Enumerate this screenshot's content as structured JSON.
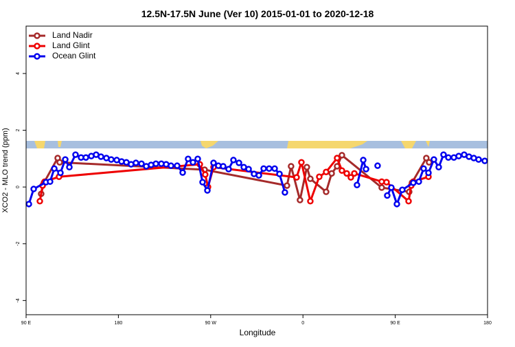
{
  "chart_data": {
    "type": "line",
    "title": "12.5N-17.5N June (Ver 10)   2015-01-01 to 2020-12-18",
    "x_label": "Longitude",
    "y_label": "XCO2 - MLO trend (ppm)",
    "xlim": [
      90,
      540
    ],
    "ylim": [
      -4.5,
      5.67
    ],
    "xticks": [
      {
        "value": 90,
        "label": "90 E"
      },
      180,
      {
        "value": 270,
        "label": "90 W"
      },
      {
        "value": 360,
        "label": "0"
      },
      {
        "value": 450,
        "label": "90 E"
      },
      {
        "value": 540,
        "label": "180"
      }
    ],
    "yticks": [
      -4,
      -2,
      0,
      2,
      4
    ],
    "legend": "top-left",
    "series": [
      {
        "name": "Land Nadir",
        "color": "#a52a2a",
        "x": [
          104.7,
          107.4,
          120.8,
          122.8,
          264.1,
          344.4,
          348.4,
          357.1,
          363.8,
          367.2,
          382.6,
          388,
          393.3,
          398,
          436.8,
          463.6,
          466.3,
          480.3,
          483
        ],
        "values": [
          -0.24,
          0.15,
          1.02,
          0.87,
          0.61,
          0.05,
          0.73,
          -0.46,
          0.7,
          0.29,
          -0.17,
          0.48,
          0.73,
          1.12,
          -0.02,
          -0.17,
          0.15,
          1.02,
          0.87
        ]
      },
      {
        "name": "Land Glint",
        "color": "#ee0000",
        "x": [
          103.4,
          106.1,
          108.1,
          122.1,
          259.4,
          264.7,
          267.4,
          272.8,
          353.8,
          358.5,
          367.2,
          375.9,
          382.6,
          393.3,
          398,
          402.7,
          406.7,
          410.1,
          436.8,
          441.5,
          463,
          465.6,
          467.6,
          482.4
        ],
        "values": [
          -0.5,
          0.05,
          0.19,
          0.36,
          0.8,
          0.44,
          0,
          0.7,
          0.34,
          0.87,
          -0.5,
          0.36,
          0.53,
          1.02,
          0.58,
          0.48,
          0.34,
          0.48,
          0.19,
          0.17,
          -0.5,
          0.05,
          0.19,
          0.36
        ]
      },
      {
        "name": "Ocean Glint",
        "color": "#0000ee",
        "x": [
          92.7,
          97.4,
          109.4,
          113.4,
          117.5,
          123.5,
          128.2,
          132.2,
          138.2,
          143.6,
          148.3,
          153.6,
          158.3,
          163,
          168.3,
          173,
          178.4,
          183.1,
          187.8,
          192.4,
          197.1,
          202.5,
          207.2,
          211.9,
          216.6,
          221.9,
          226.6,
          231.3,
          237.3,
          242.7,
          248,
          252.7,
          257.4,
          262.1,
          266.8,
          272.8,
          277.5,
          282.2,
          287.5,
          292.2,
          297.6,
          302.3,
          307,
          312.3,
          317,
          321.7,
          327,
          332.4,
          337.1,
          342.4,
          380,
          412.7,
          418.8,
          421.5,
          427,
          432.8,
          438,
          442.2,
          446.2,
          451.6,
          456.9,
          467.6,
          473,
          477.7,
          482.4,
          487.7,
          492.4,
          497.1,
          501.8,
          507.2,
          511.9,
          517.2,
          521.9,
          526.6,
          531.3,
          537.3
        ],
        "values": [
          -0.6,
          -0.07,
          0.17,
          0.19,
          0.65,
          0.5,
          0.97,
          0.7,
          1.14,
          1.04,
          1.04,
          1.09,
          1.14,
          1.07,
          1.02,
          0.97,
          0.95,
          0.9,
          0.87,
          0.8,
          0.85,
          0.82,
          0.73,
          0.78,
          0.82,
          0.82,
          0.8,
          0.75,
          0.75,
          0.51,
          0.99,
          0.87,
          0.99,
          0.17,
          -0.12,
          0.85,
          0.75,
          0.73,
          0.63,
          0.95,
          0.85,
          0.7,
          0.63,
          0.46,
          0.41,
          0.65,
          0.65,
          0.65,
          0.46,
          -0.19,
          null,
          0.07,
          0.95,
          0.63,
          null,
          0.75,
          null,
          -0.3,
          -0.02,
          -0.6,
          -0.1,
          0.15,
          0.19,
          0.65,
          0.5,
          0.97,
          0.7,
          1.14,
          1.04,
          1.04,
          1.09,
          1.14,
          1.07,
          1.02,
          0.97,
          0.92
        ]
      }
    ]
  }
}
